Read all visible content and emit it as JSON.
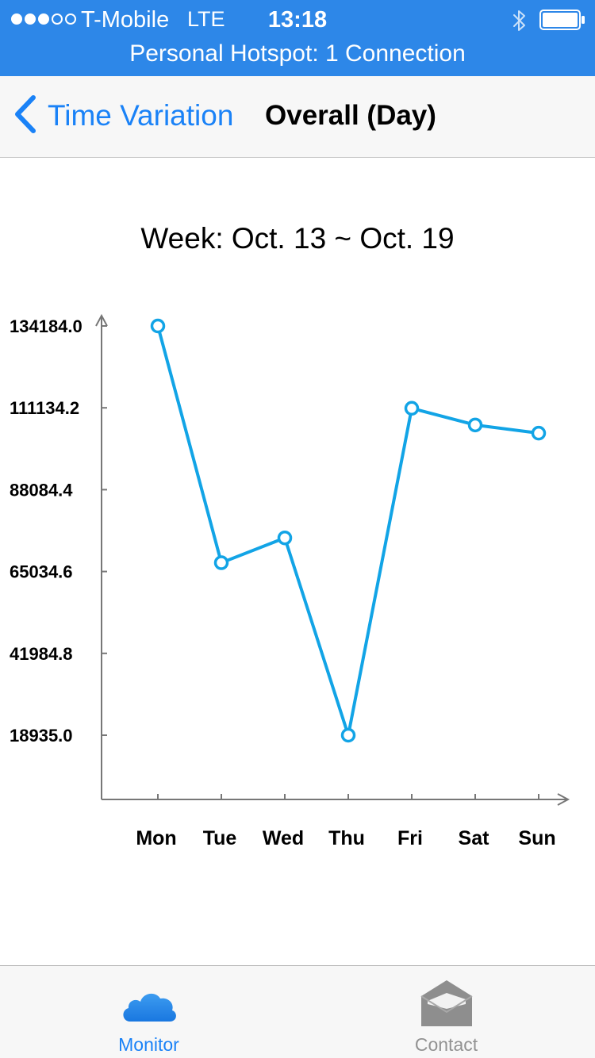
{
  "status_bar": {
    "carrier": "T-Mobile",
    "network": "LTE",
    "time": "13:18",
    "signal_filled": 3,
    "signal_total": 5,
    "hotspot": "Personal Hotspot: 1 Connection",
    "icons": [
      "bluetooth-icon",
      "battery-icon"
    ],
    "background": "#2d87e8"
  },
  "nav": {
    "back_label": "Time Variation",
    "title": "Overall (Day)",
    "accent": "#1a82f7"
  },
  "chart_data": {
    "type": "line",
    "title": "Week: Oct. 13 ~ Oct. 19",
    "xlabel": "",
    "ylabel": "",
    "categories": [
      "Mon",
      "Tue",
      "Wed",
      "Thu",
      "Fri",
      "Sat",
      "Sun"
    ],
    "values": [
      134184.0,
      67500,
      74500,
      18935.0,
      111000,
      106300,
      104000
    ],
    "y_ticks": [
      "134184.0",
      "111134.2",
      "88084.4",
      "65034.6",
      "41984.8",
      "18935.0"
    ],
    "y_tick_values": [
      134184.0,
      111134.2,
      88084.4,
      65034.6,
      41984.8,
      18935.0
    ],
    "line_color": "#12a4e6",
    "marker": "hollow-circle",
    "grid": false,
    "legend": "none"
  },
  "tab_bar": {
    "tabs": [
      {
        "label": "Monitor",
        "icon": "cloud-icon",
        "active": true
      },
      {
        "label": "Contact",
        "icon": "envelope-icon",
        "active": false
      }
    ],
    "active_color": "#1a82f7",
    "inactive_color": "#929292"
  }
}
